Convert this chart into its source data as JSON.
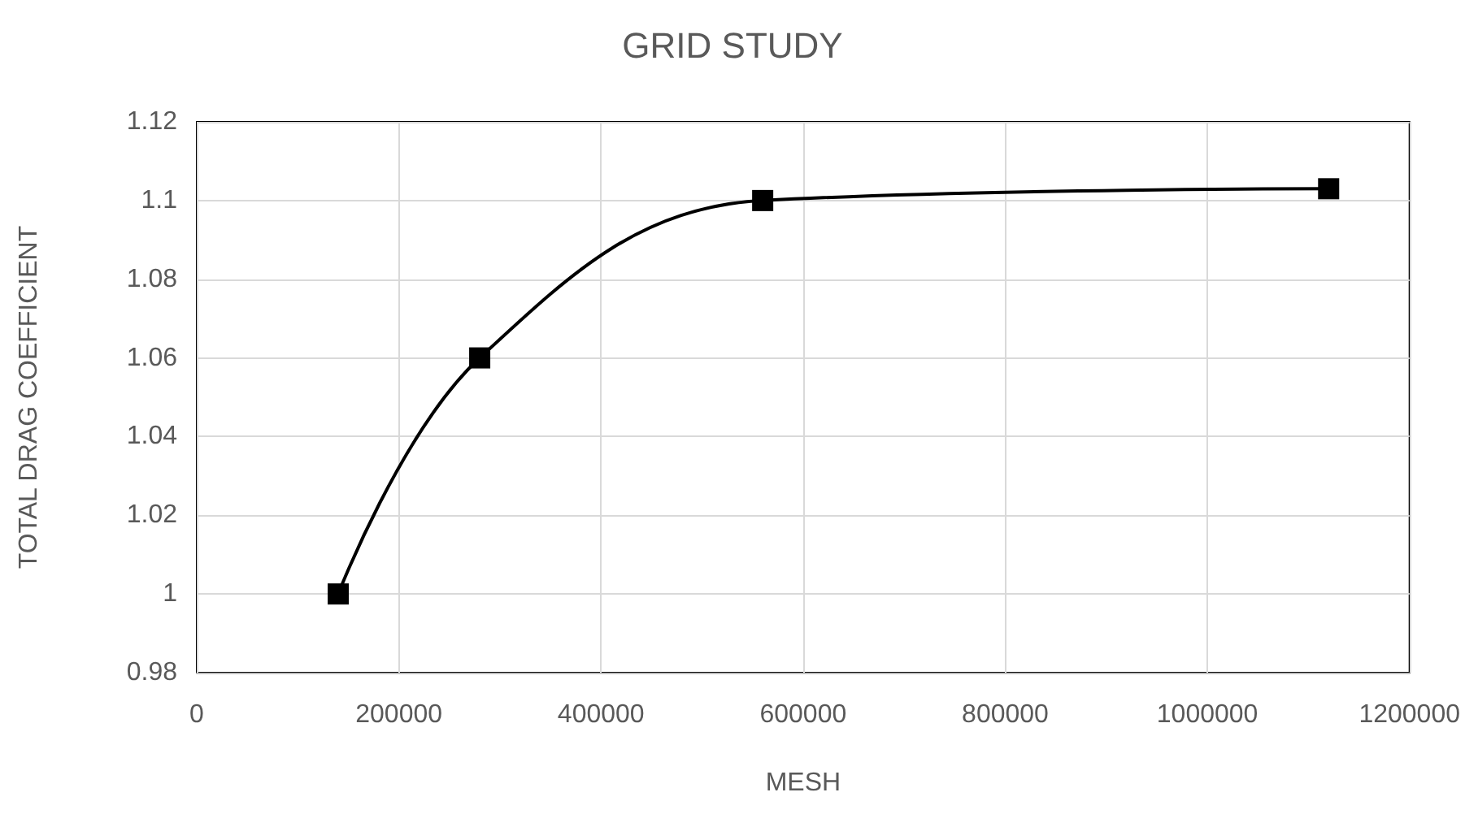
{
  "chart_data": {
    "type": "line",
    "title": "GRID STUDY",
    "xlabel": "MESH",
    "ylabel": "TOTAL DRAG COEFFICIENT",
    "x": [
      140000,
      280000,
      560000,
      1120000
    ],
    "series": [
      {
        "color": "#000000",
        "values": [
          1.0,
          1.06,
          1.1,
          1.103
        ]
      }
    ],
    "xlim": [
      0,
      1200000
    ],
    "xticks": [
      0,
      200000,
      400000,
      600000,
      800000,
      1000000,
      1200000
    ],
    "ylim": [
      0.98,
      1.12
    ],
    "yticks": [
      0.98,
      1,
      1.02,
      1.04,
      1.06,
      1.08,
      1.1,
      1.12
    ],
    "grid": true,
    "marker": "square",
    "line_style": "solid"
  }
}
